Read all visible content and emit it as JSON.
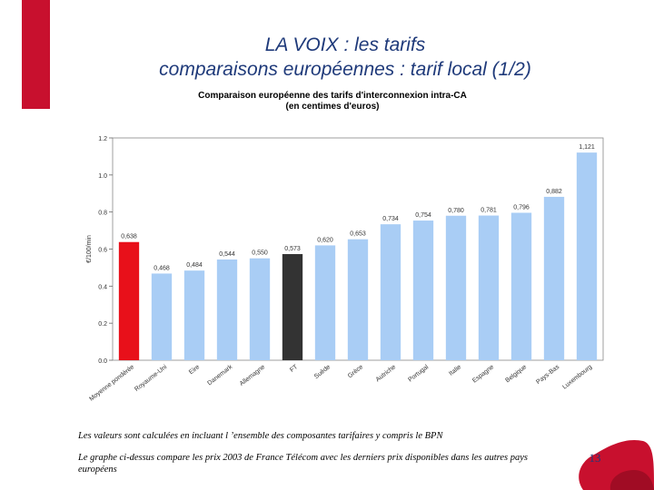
{
  "slide": {
    "title_line1": "LA VOIX : les tarifs",
    "title_line2": "comparaisons européennes : tarif local (1/2)",
    "note1": "Les valeurs sont calculées en incluant l ’ensemble des composantes tarifaires y compris le BPN",
    "note2": "Le graphe ci-dessus compare les prix 2003 de France Télécom avec les derniers prix disponibles dans les autres pays européens",
    "page_number": "13",
    "accent_color": "#c8102e",
    "title_color": "#1f3a7a"
  },
  "chart_data": {
    "type": "bar",
    "title_line1": "Comparaison européenne des tarifs d'interconnexion intra-CA",
    "title_line2": "(en centimes d'euros)",
    "ylabel": "€/100/min",
    "xlabel": "",
    "ylim": [
      0,
      1.2
    ],
    "yticks": [
      "0.0",
      "0.2",
      "0.4",
      "0.6",
      "0.8",
      "1.0",
      "1.2"
    ],
    "grid": false,
    "categories": [
      "Moyenne pondérée",
      "Royaume-Uni",
      "Eire",
      "Danemark",
      "Allemagne",
      "FT",
      "Suède",
      "Grèce",
      "Autriche",
      "Portugal",
      "Italie",
      "Espagne",
      "Belgique",
      "Pays-Bas",
      "Luxembourg"
    ],
    "values": [
      0.638,
      0.468,
      0.484,
      0.544,
      0.55,
      0.573,
      0.62,
      0.653,
      0.734,
      0.754,
      0.78,
      0.781,
      0.796,
      0.882,
      1.121
    ],
    "value_labels": [
      "0,638",
      "0,468",
      "0,484",
      "0,544",
      "0,550",
      "0,573",
      "0,620",
      "0,653",
      "0,734",
      "0,754",
      "0,780",
      "0,781",
      "0,796",
      "0,882",
      "1,121"
    ],
    "colors": [
      "#e8101a",
      "#a9cdf5",
      "#a9cdf5",
      "#a9cdf5",
      "#a9cdf5",
      "#333333",
      "#a9cdf5",
      "#a9cdf5",
      "#a9cdf5",
      "#a9cdf5",
      "#a9cdf5",
      "#a9cdf5",
      "#a9cdf5",
      "#a9cdf5",
      "#a9cdf5"
    ]
  }
}
